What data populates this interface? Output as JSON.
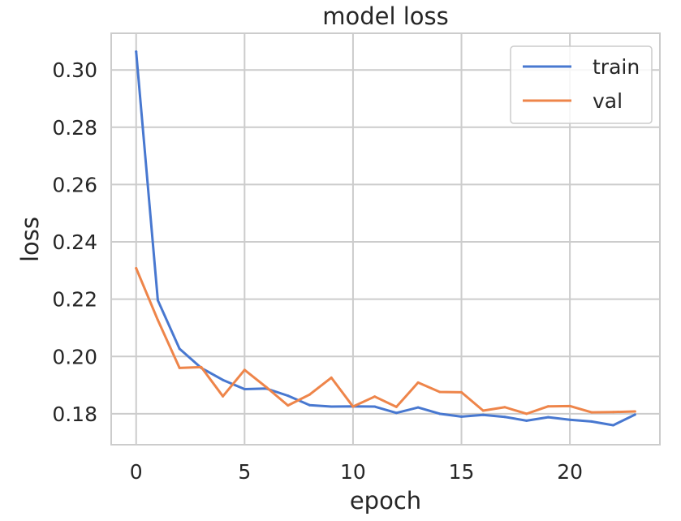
{
  "chart_data": {
    "type": "line",
    "title": "model loss",
    "xlabel": "epoch",
    "ylabel": "loss",
    "xlim": [
      -1.15,
      24.15
    ],
    "ylim": [
      0.1692,
      0.3128
    ],
    "xticks": [
      0,
      5,
      10,
      15,
      20
    ],
    "yticks": [
      0.18,
      0.2,
      0.22,
      0.24,
      0.26,
      0.28,
      0.3
    ],
    "xtick_labels": [
      "0",
      "5",
      "10",
      "15",
      "20"
    ],
    "ytick_labels": [
      "0.18",
      "0.20",
      "0.22",
      "0.24",
      "0.26",
      "0.28",
      "0.30"
    ],
    "grid": true,
    "legend_position": "top-right",
    "x": [
      0,
      1,
      2,
      3,
      4,
      5,
      6,
      7,
      8,
      9,
      10,
      11,
      12,
      13,
      14,
      15,
      16,
      17,
      18,
      19,
      20,
      21,
      22,
      23
    ],
    "series": [
      {
        "name": "train",
        "color": "#4878d0",
        "values": [
          0.3064,
          0.2196,
          0.2027,
          0.196,
          0.1918,
          0.1886,
          0.1888,
          0.1863,
          0.183,
          0.1825,
          0.1826,
          0.1825,
          0.1803,
          0.1822,
          0.18,
          0.179,
          0.1796,
          0.1789,
          0.1776,
          0.1788,
          0.1779,
          0.1773,
          0.176,
          0.1797
        ]
      },
      {
        "name": "val",
        "color": "#ee854a",
        "values": [
          0.2308,
          0.2127,
          0.196,
          0.1963,
          0.1861,
          0.1953,
          0.1893,
          0.1829,
          0.1867,
          0.1926,
          0.1825,
          0.186,
          0.1824,
          0.1909,
          0.1876,
          0.1875,
          0.1811,
          0.1823,
          0.18,
          0.1826,
          0.1827,
          0.1805,
          0.1806,
          0.1808
        ]
      }
    ]
  }
}
